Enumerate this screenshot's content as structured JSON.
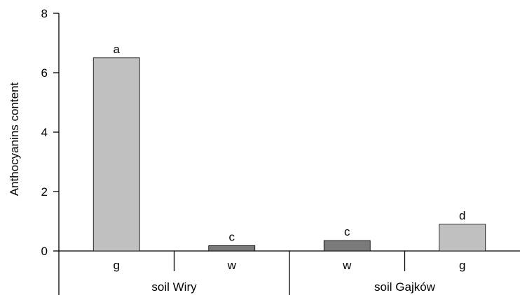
{
  "chart_data": {
    "type": "bar",
    "ylabel": "Anthocyanins content",
    "ylim": [
      0,
      8
    ],
    "yticks": [
      "0",
      "2",
      "4",
      "6",
      "8"
    ],
    "groups": [
      {
        "label": "soil Wiry",
        "categories": [
          "g",
          "w"
        ]
      },
      {
        "label": "soil Gajków",
        "categories": [
          "w",
          "g"
        ]
      }
    ],
    "categories": [
      "g",
      "w",
      "w",
      "g"
    ],
    "values": [
      6.5,
      0.18,
      0.35,
      0.9
    ],
    "significance_labels": [
      "a",
      "c",
      "c",
      "d"
    ],
    "colors": [
      "#c0c0c0",
      "#7a7a7a",
      "#7a7a7a",
      "#c0c0c0"
    ],
    "grid": false,
    "legend": "none"
  }
}
